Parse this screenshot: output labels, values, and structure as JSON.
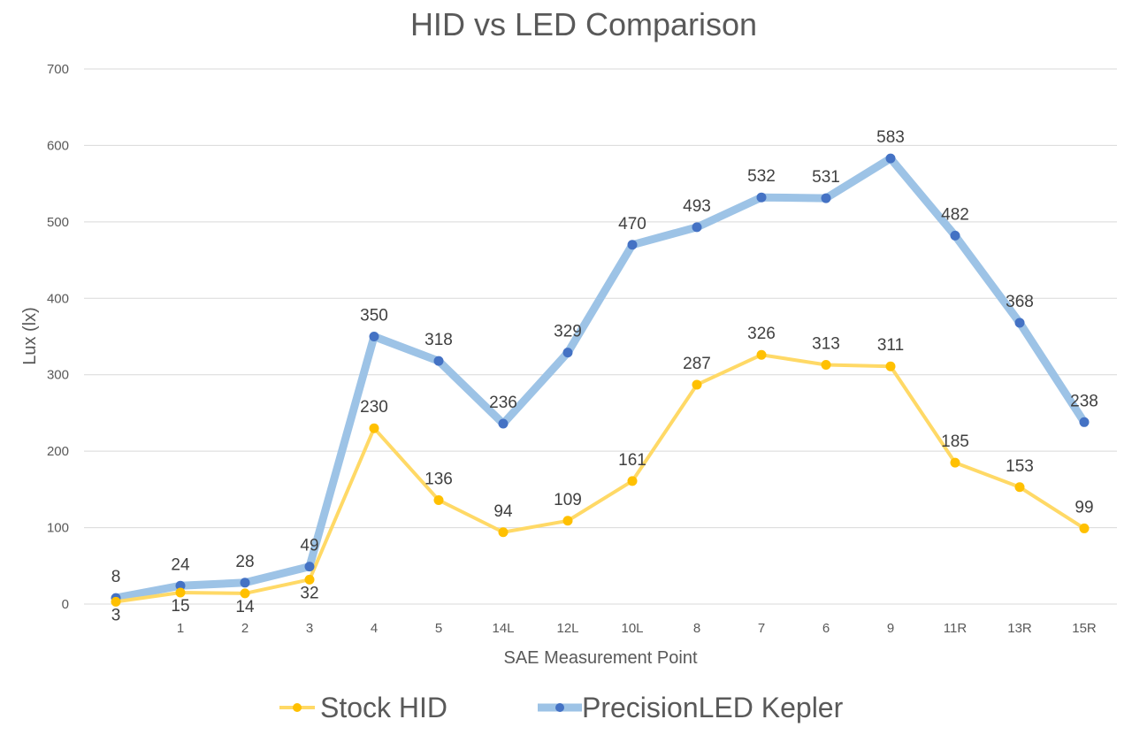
{
  "chart_data": {
    "type": "line",
    "title": "HID vs LED Comparison",
    "xlabel": "SAE Measurement Point",
    "ylabel": "Lux (lx)",
    "ylim": [
      0,
      700
    ],
    "yticks": [
      0,
      100,
      200,
      300,
      400,
      500,
      600,
      700
    ],
    "grid": true,
    "legend_position": "bottom",
    "categories": [
      "",
      "1",
      "2",
      "3",
      "4",
      "5",
      "14L",
      "12L",
      "10L",
      "8",
      "7",
      "6",
      "9",
      "11R",
      "13R",
      "15R"
    ],
    "series": [
      {
        "name": "Stock HID",
        "color": "#FFC000",
        "line_color": "#FFD966",
        "values": [
          3,
          15,
          14,
          32,
          230,
          136,
          94,
          109,
          161,
          287,
          326,
          313,
          311,
          185,
          153,
          99
        ]
      },
      {
        "name": "PrecisionLED Kepler",
        "color": "#4472C4",
        "line_color": "#9DC3E6",
        "values": [
          8,
          24,
          28,
          49,
          350,
          318,
          236,
          329,
          470,
          493,
          532,
          531,
          583,
          482,
          368,
          238
        ]
      }
    ]
  }
}
